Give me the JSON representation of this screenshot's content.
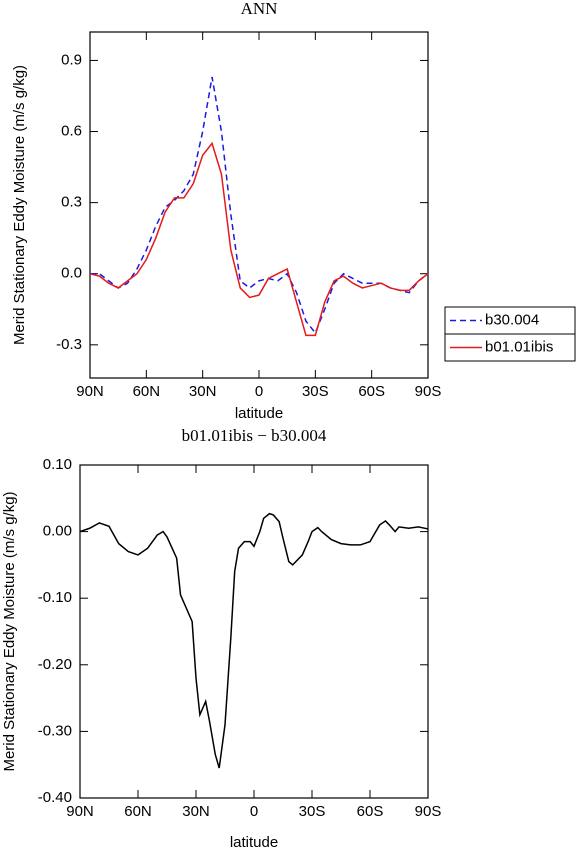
{
  "chart_data": [
    {
      "type": "line",
      "title": "ANN",
      "y_label": "Merid Stationary Eddy Moisture (m/s g/kg)",
      "x_label": "latitude",
      "x": [
        90,
        85,
        80,
        75,
        70,
        65,
        60,
        55,
        50,
        45,
        40,
        35,
        30,
        25,
        20,
        15,
        10,
        5,
        0,
        -5,
        -10,
        -15,
        -20,
        -25,
        -30,
        -35,
        -40,
        -45,
        -50,
        -55,
        -60,
        -65,
        -70,
        -75,
        -80,
        -85,
        -90
      ],
      "series": [
        {
          "name": "b30.004",
          "color": "#1a1ae6",
          "dash": true,
          "values": [
            0.0,
            0.0,
            -0.03,
            -0.06,
            -0.04,
            0.02,
            0.1,
            0.2,
            0.28,
            0.31,
            0.35,
            0.42,
            0.6,
            0.83,
            0.6,
            0.25,
            -0.03,
            -0.06,
            -0.03,
            -0.02,
            -0.03,
            0.0,
            -0.08,
            -0.2,
            -0.25,
            -0.15,
            -0.04,
            0.0,
            -0.02,
            -0.04,
            -0.04,
            -0.04,
            -0.06,
            -0.07,
            -0.08,
            -0.03,
            0.0
          ]
        },
        {
          "name": "b01.01ibis",
          "color": "#e61a1a",
          "dash": false,
          "values": [
            0.0,
            -0.01,
            -0.04,
            -0.06,
            -0.03,
            0.0,
            0.06,
            0.15,
            0.26,
            0.32,
            0.32,
            0.38,
            0.5,
            0.55,
            0.42,
            0.1,
            -0.06,
            -0.1,
            -0.09,
            -0.02,
            0.0,
            0.02,
            -0.12,
            -0.26,
            -0.26,
            -0.12,
            -0.03,
            -0.01,
            -0.04,
            -0.06,
            -0.05,
            -0.04,
            -0.06,
            -0.07,
            -0.07,
            -0.03,
            0.0
          ]
        }
      ],
      "xlim": [
        90,
        -90
      ],
      "xticks": [
        {
          "value": 90,
          "label": "90N"
        },
        {
          "value": 60,
          "label": "60N"
        },
        {
          "value": 30,
          "label": "30N"
        },
        0,
        {
          "value": -30,
          "label": "30S"
        },
        {
          "value": -60,
          "label": "60S"
        },
        {
          "value": -90,
          "label": "90S"
        }
      ],
      "ylim": [
        -0.44,
        1.02
      ],
      "yticks": [
        -0.3,
        {
          "value": 0,
          "label": "0.0"
        },
        0.3,
        0.6,
        0.9
      ],
      "legend": "right"
    },
    {
      "type": "line",
      "title": "b01.01ibis − b30.004",
      "y_label": "Merid Stationary Eddy Moisture (m/s g/kg)",
      "x_label": "latitude",
      "x": [
        90,
        85,
        80,
        75,
        70,
        65,
        60,
        55,
        50,
        47,
        45,
        40,
        38,
        32,
        30,
        28,
        25,
        23,
        20,
        18,
        15,
        12,
        10,
        8,
        5,
        2,
        0,
        -3,
        -5,
        -8,
        -10,
        -13,
        -15,
        -18,
        -20,
        -25,
        -28,
        -30,
        -33,
        -35,
        -40,
        -45,
        -50,
        -55,
        -60,
        -62,
        -65,
        -68,
        -70,
        -73,
        -75,
        -80,
        -85,
        -90
      ],
      "series": [
        {
          "name": "b01.01ibis − b30.004",
          "color": "#000000",
          "dash": false,
          "values": [
            0.0,
            0.005,
            0.013,
            0.008,
            -0.018,
            -0.03,
            -0.035,
            -0.025,
            -0.005,
            0.0,
            -0.008,
            -0.04,
            -0.095,
            -0.135,
            -0.22,
            -0.275,
            -0.255,
            -0.285,
            -0.335,
            -0.355,
            -0.29,
            -0.16,
            -0.06,
            -0.025,
            -0.015,
            -0.015,
            -0.022,
            0.0,
            0.02,
            0.027,
            0.025,
            0.015,
            -0.01,
            -0.045,
            -0.05,
            -0.035,
            -0.015,
            0.0,
            0.006,
            0.0,
            -0.012,
            -0.018,
            -0.02,
            -0.02,
            -0.015,
            -0.005,
            0.01,
            0.016,
            0.01,
            0.0,
            0.007,
            0.005,
            0.007,
            0.004
          ]
        }
      ],
      "xlim": [
        90,
        -90
      ],
      "xticks": [
        {
          "value": 90,
          "label": "90N"
        },
        {
          "value": 60,
          "label": "60N"
        },
        {
          "value": 30,
          "label": "30N"
        },
        0,
        {
          "value": -30,
          "label": "30S"
        },
        {
          "value": -60,
          "label": "60S"
        },
        {
          "value": -90,
          "label": "90S"
        }
      ],
      "ylim": [
        -0.4,
        0.1
      ],
      "yticks": [
        {
          "value": -0.4,
          "label": "-0.40"
        },
        {
          "value": -0.3,
          "label": "-0.30"
        },
        {
          "value": -0.2,
          "label": "-0.20"
        },
        {
          "value": -0.1,
          "label": "-0.10"
        },
        {
          "value": 0,
          "label": "0.00"
        },
        {
          "value": 0.1,
          "label": "0.10"
        }
      ]
    }
  ]
}
